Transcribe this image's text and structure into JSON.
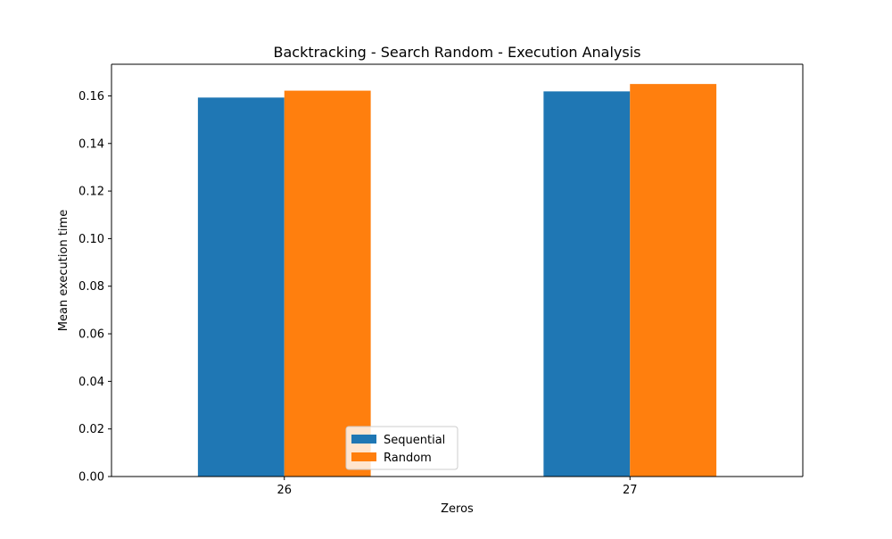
{
  "chart_data": {
    "type": "bar",
    "title": "Backtracking - Search Random - Execution Analysis",
    "xlabel": "Zeros",
    "ylabel": "Mean execution time",
    "categories": [
      "26",
      "27"
    ],
    "series": [
      {
        "name": "Sequential",
        "color": "#1f77b4",
        "values": [
          0.1593,
          0.1619
        ]
      },
      {
        "name": "Random",
        "color": "#ff7f0e",
        "values": [
          0.1622,
          0.165
        ]
      }
    ],
    "ylim": [
      0,
      0.1733
    ],
    "yticks": [
      "0.00",
      "0.02",
      "0.04",
      "0.06",
      "0.08",
      "0.10",
      "0.12",
      "0.14",
      "0.16"
    ],
    "grid": false,
    "legend_position": "lower center"
  }
}
